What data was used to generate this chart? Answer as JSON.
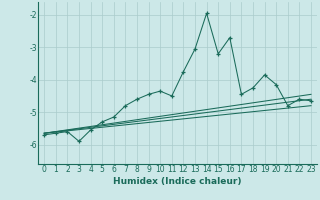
{
  "xlabel": "Humidex (Indice chaleur)",
  "ylabel": "",
  "bg_color": "#cce8e8",
  "grid_color": "#aacccc",
  "line_color": "#1a6b5a",
  "xlim": [
    -0.5,
    23.5
  ],
  "ylim": [
    -6.6,
    -1.6
  ],
  "yticks": [
    -6,
    -5,
    -4,
    -3,
    -2
  ],
  "xticks": [
    0,
    1,
    2,
    3,
    4,
    5,
    6,
    7,
    8,
    9,
    10,
    11,
    12,
    13,
    14,
    15,
    16,
    17,
    18,
    19,
    20,
    21,
    22,
    23
  ],
  "main_x": [
    0,
    1,
    2,
    3,
    4,
    5,
    6,
    7,
    8,
    9,
    10,
    11,
    12,
    13,
    14,
    15,
    16,
    17,
    18,
    19,
    20,
    21,
    22,
    23
  ],
  "main_y": [
    -5.7,
    -5.65,
    -5.6,
    -5.9,
    -5.55,
    -5.3,
    -5.15,
    -4.8,
    -4.6,
    -4.45,
    -4.35,
    -4.5,
    -3.75,
    -3.05,
    -1.95,
    -3.2,
    -2.7,
    -4.45,
    -4.25,
    -3.85,
    -4.15,
    -4.8,
    -4.6,
    -4.65
  ],
  "line1_x": [
    0,
    23
  ],
  "line1_y": [
    -5.65,
    -4.45
  ],
  "line2_x": [
    0,
    23
  ],
  "line2_y": [
    -5.65,
    -4.6
  ],
  "line3_x": [
    0,
    23
  ],
  "line3_y": [
    -5.65,
    -4.8
  ],
  "xlabel_fontsize": 6.5,
  "tick_fontsize": 5.5
}
